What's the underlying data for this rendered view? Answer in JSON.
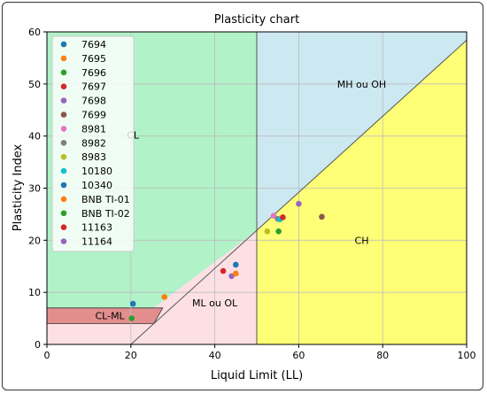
{
  "chart_data": {
    "type": "scatter",
    "title": "Plasticity chart",
    "xlabel": "Liquid Limit (LL)",
    "ylabel": "Plasticity Index",
    "xlim": [
      0,
      100
    ],
    "ylim": [
      0,
      60
    ],
    "xticks": [
      0,
      20,
      40,
      60,
      80,
      100
    ],
    "yticks": [
      0,
      10,
      20,
      30,
      40,
      50,
      60
    ],
    "grid": true,
    "legend_position": "top-left",
    "region_labels": [
      {
        "text": "CL",
        "x": 20.5,
        "y": 40.2
      },
      {
        "text": "MH ou OH",
        "x": 75,
        "y": 50
      },
      {
        "text": "CH",
        "x": 75,
        "y": 20
      },
      {
        "text": "ML ou OL",
        "x": 40,
        "y": 8
      },
      {
        "text": "CL-ML",
        "x": 15,
        "y": 5.5
      }
    ],
    "regions": [
      {
        "name": "CL",
        "color": "#b1f2c8"
      },
      {
        "name": "MH ou OH",
        "color": "#cce8f0"
      },
      {
        "name": "CH",
        "color": "#ffff77"
      },
      {
        "name": "ML ou OL",
        "color": "#fce0e4"
      },
      {
        "name": "CL-ML",
        "color": "#e38e8e"
      }
    ],
    "series": [
      {
        "name": "7694",
        "color": "#1f77b4",
        "x": [
          20.5
        ],
        "y": [
          7.8
        ]
      },
      {
        "name": "7695",
        "color": "#ff7f0e",
        "x": [
          28
        ],
        "y": [
          9.1
        ]
      },
      {
        "name": "7696",
        "color": "#2ca02c",
        "x": [
          20.2
        ],
        "y": [
          5.0
        ]
      },
      {
        "name": "7697",
        "color": "#d62728",
        "x": [
          42
        ],
        "y": [
          14.1
        ]
      },
      {
        "name": "7698",
        "color": "#9467bd",
        "x": [
          44
        ],
        "y": [
          13.1
        ]
      },
      {
        "name": "7699",
        "color": "#8c564b",
        "x": [
          65.5
        ],
        "y": [
          24.5
        ]
      },
      {
        "name": "8981",
        "color": "#e377c2",
        "x": [
          54
        ],
        "y": [
          24.7
        ]
      },
      {
        "name": "8982",
        "color": "#7f7f7f",
        "x": [
          55
        ],
        "y": [
          24.1
        ]
      },
      {
        "name": "8983",
        "color": "#bcbd22",
        "x": [
          52.5
        ],
        "y": [
          21.7
        ]
      },
      {
        "name": "10180",
        "color": "#17becf",
        "x": [
          55.5
        ],
        "y": [
          24.0
        ]
      },
      {
        "name": "10340",
        "color": "#1f77b4",
        "x": [
          45
        ],
        "y": [
          15.3
        ]
      },
      {
        "name": "BNB TI-01",
        "color": "#ff7f0e",
        "x": [
          45
        ],
        "y": [
          13.6
        ]
      },
      {
        "name": "BNB TI-02",
        "color": "#2ca02c",
        "x": [
          55.2
        ],
        "y": [
          21.7
        ]
      },
      {
        "name": "11163",
        "color": "#d62728",
        "x": [
          56.2
        ],
        "y": [
          24.4
        ]
      },
      {
        "name": "11164",
        "color": "#9467bd",
        "x": [
          60
        ],
        "y": [
          27.0
        ]
      }
    ]
  }
}
